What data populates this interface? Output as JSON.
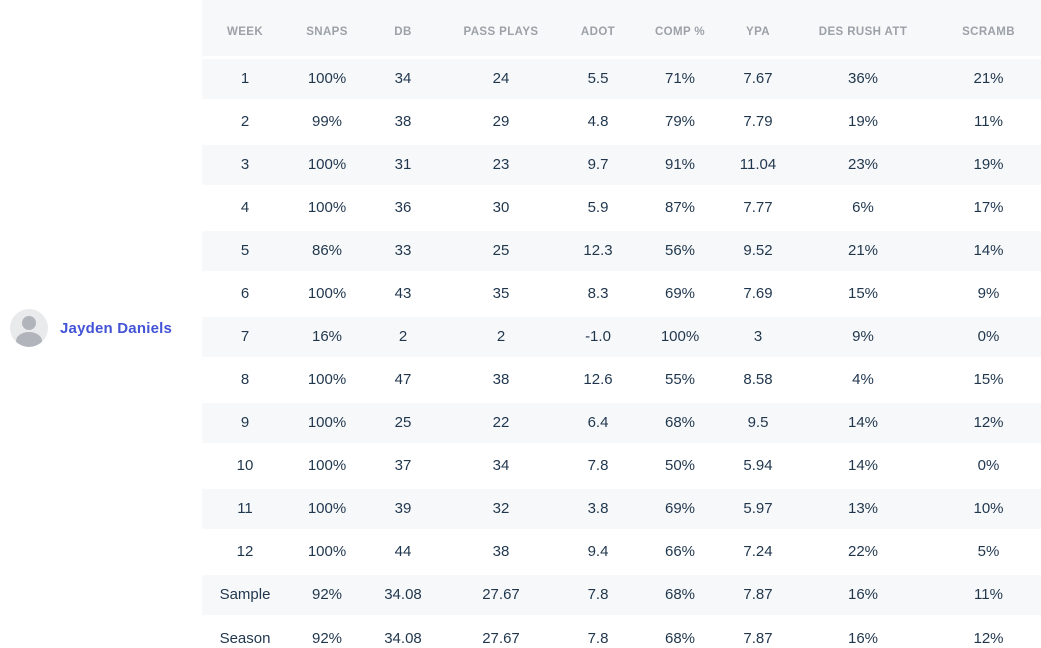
{
  "player": {
    "name": "Jayden Daniels"
  },
  "table": {
    "columns": [
      "WEEK",
      "SNAPS",
      "DB",
      "PASS PLAYS",
      "ADOT",
      "COMP %",
      "YPA",
      "DES RUSH ATT",
      "SCRAMB"
    ],
    "rows": [
      [
        "1",
        "100%",
        "34",
        "24",
        "5.5",
        "71%",
        "7.67",
        "36%",
        "21%"
      ],
      [
        "2",
        "99%",
        "38",
        "29",
        "4.8",
        "79%",
        "7.79",
        "19%",
        "11%"
      ],
      [
        "3",
        "100%",
        "31",
        "23",
        "9.7",
        "91%",
        "11.04",
        "23%",
        "19%"
      ],
      [
        "4",
        "100%",
        "36",
        "30",
        "5.9",
        "87%",
        "7.77",
        "6%",
        "17%"
      ],
      [
        "5",
        "86%",
        "33",
        "25",
        "12.3",
        "56%",
        "9.52",
        "21%",
        "14%"
      ],
      [
        "6",
        "100%",
        "43",
        "35",
        "8.3",
        "69%",
        "7.69",
        "15%",
        "9%"
      ],
      [
        "7",
        "16%",
        "2",
        "2",
        "-1.0",
        "100%",
        "3",
        "9%",
        "0%"
      ],
      [
        "8",
        "100%",
        "47",
        "38",
        "12.6",
        "55%",
        "8.58",
        "4%",
        "15%"
      ],
      [
        "9",
        "100%",
        "25",
        "22",
        "6.4",
        "68%",
        "9.5",
        "14%",
        "12%"
      ],
      [
        "10",
        "100%",
        "37",
        "34",
        "7.8",
        "50%",
        "5.94",
        "14%",
        "0%"
      ],
      [
        "11",
        "100%",
        "39",
        "32",
        "3.8",
        "69%",
        "5.97",
        "13%",
        "10%"
      ],
      [
        "12",
        "100%",
        "44",
        "38",
        "9.4",
        "66%",
        "7.24",
        "22%",
        "5%"
      ],
      [
        "Sample",
        "92%",
        "34.08",
        "27.67",
        "7.8",
        "68%",
        "7.87",
        "16%",
        "11%"
      ],
      [
        "Season",
        "92%",
        "34.08",
        "27.67",
        "7.8",
        "68%",
        "7.87",
        "16%",
        "12%"
      ]
    ]
  },
  "colors": {
    "row_stripe": "#f7f8f9",
    "header_text": "#9ca1a8",
    "cell_text": "#1f364d",
    "player_link": "#4353d6",
    "avatar_bg": "#e9eaec",
    "avatar_glyph": "#b1b5bb"
  }
}
